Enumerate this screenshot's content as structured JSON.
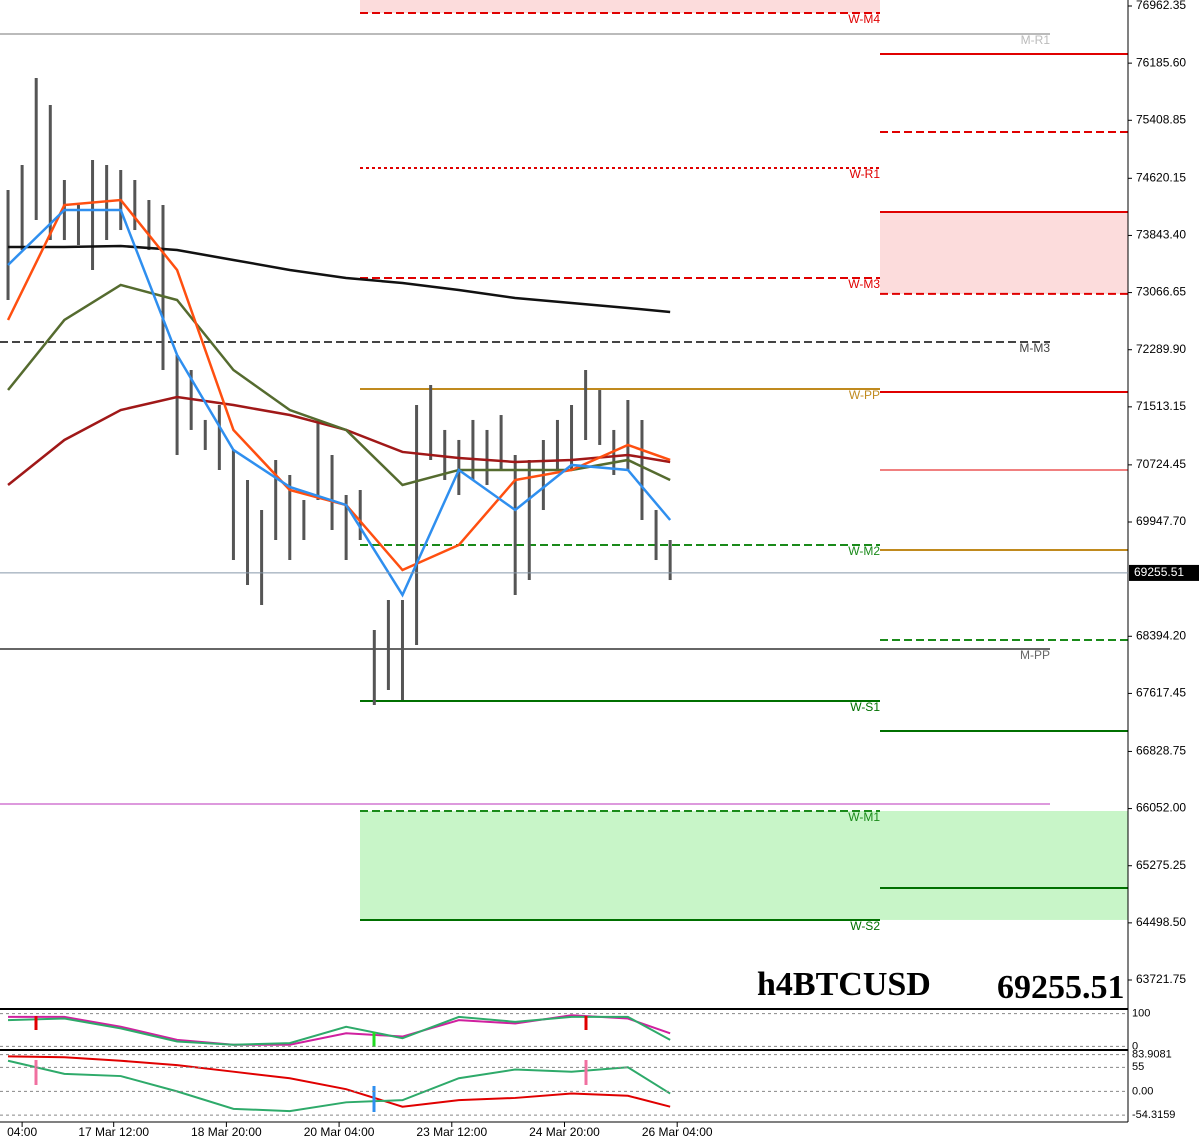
{
  "chart_data": {
    "type": "ohlc",
    "symbol": "h4BTCUSD",
    "last_price": 69255.51,
    "xlim": [
      -0.57,
      79.5
    ],
    "ylim": [
      63341,
      77044
    ],
    "yticks": [
      76962.35,
      {
        "value": 76185.6,
        "label": "76185.60"
      },
      75408.85,
      74620.15,
      {
        "value": 73843.4,
        "label": "73843.40"
      },
      73066.65,
      {
        "value": 72289.9,
        "label": "72289.90"
      },
      71513.15,
      70724.45,
      {
        "value": 69947.7,
        "label": "69947.70"
      },
      {
        "value": 68394.2,
        "label": "68394.20"
      },
      67617.45,
      66828.75,
      {
        "value": 66052,
        "label": "66052.00"
      },
      65275.25,
      {
        "value": 64498.5,
        "label": "64498.50"
      },
      63721.75
    ],
    "xticks": [
      {
        "value": 1,
        "label": "04:00"
      },
      {
        "value": 7.5,
        "label": "17 Mar 12:00"
      },
      {
        "value": 15.5,
        "label": "18 Mar 20:00"
      },
      {
        "value": 23.5,
        "label": "20 Mar 04:00"
      },
      {
        "value": 31.5,
        "label": "23 Mar 12:00"
      },
      {
        "value": 39.5,
        "label": "24 Mar 20:00"
      },
      {
        "value": 47.5,
        "label": "26 Mar 04:00"
      }
    ],
    "bar_color": "#555555",
    "bars": {
      "high": [
        74461,
        74801,
        75984,
        75617,
        74597,
        74257,
        74869,
        74801,
        74733,
        74597,
        74325,
        74257,
        72218,
        72014,
        71335,
        71538,
        70927,
        70519,
        70111,
        70791,
        70587,
        70247,
        71335,
        70859,
        70315,
        70383,
        68480,
        68888,
        68888,
        71538,
        71810,
        71199,
        71063,
        71335,
        71199,
        71402,
        70859,
        70791,
        71063,
        71335,
        71538,
        72014,
        71742,
        71199,
        71606,
        71335,
        70111,
        69703
      ],
      "low": [
        72966,
        73645,
        74053,
        73781,
        73781,
        73713,
        73374,
        73781,
        73917,
        73917,
        73645,
        72014,
        70859,
        71199,
        70927,
        70655,
        69431,
        69092,
        68820,
        69703,
        69431,
        69703,
        70247,
        69839,
        69431,
        69703,
        67460,
        67664,
        67528,
        68276,
        70791,
        70519,
        70315,
        70519,
        70451,
        70655,
        68956,
        69159,
        70111,
        70655,
        70655,
        71063,
        70995,
        70587,
        70655,
        69975,
        69431,
        69159
      ]
    },
    "line_x": [
      0,
      4,
      8,
      12,
      16,
      20,
      24,
      28,
      32,
      36,
      40,
      44,
      47
    ],
    "series": [
      {
        "color": "#111111",
        "values": [
          73686,
          73686,
          73700,
          73645,
          73510,
          73374,
          73265,
          73197,
          73102,
          72993,
          72925,
          72857,
          72803
        ]
      },
      {
        "color": "#a01818",
        "values": [
          70451,
          71063,
          71470,
          71647,
          71538,
          71402,
          71199,
          70900,
          70818,
          70764,
          70791,
          70859,
          70764
        ]
      },
      {
        "color": "#556b2f",
        "values": [
          71742,
          72694,
          73170,
          72966,
          72014,
          71470,
          71199,
          70451,
          70655,
          70655,
          70655,
          70791,
          70519
        ]
      },
      {
        "color": "#ff4f10",
        "values": [
          72694,
          74257,
          74325,
          73374,
          71199,
          70383,
          70179,
          69295,
          69635,
          70519,
          70655,
          70995,
          70791
        ]
      },
      {
        "color": "#2f8fef",
        "values": [
          73442,
          74189,
          74189,
          72218,
          70927,
          70424,
          70179,
          68956,
          70655,
          70111,
          70723,
          70655,
          69975
        ]
      }
    ],
    "monthly_levels": [
      {
        "label": "M-R1",
        "value": 76582,
        "color": "#bbbbbb",
        "style": "solid"
      },
      {
        "label": "M-M3",
        "value": 72395,
        "color": "#444444",
        "style": "dashed"
      },
      {
        "label": "M-PP",
        "value": 68222,
        "color": "#666666",
        "style": "solid"
      },
      {
        "label": null,
        "value": 66114,
        "color": "#dd99dd",
        "style": "solid"
      }
    ],
    "weekly_levels": [
      {
        "label": "W-M4",
        "value": 76867,
        "color": "#e00000",
        "style": "dashed"
      },
      {
        "label": "W-R1",
        "value": 74760,
        "color": "#e00000",
        "style": "dotted"
      },
      {
        "label": "W-M3",
        "value": 73265,
        "color": "#e00000",
        "style": "dashed"
      },
      {
        "label": "W-PP",
        "value": 71756,
        "color": "#c08a1e",
        "style": "solid"
      },
      {
        "label": "W-M2",
        "value": 69635,
        "color": "#1a8a1a",
        "style": "dashed"
      },
      {
        "label": "W-S1",
        "value": 67515,
        "color": "#007000",
        "style": "solid"
      },
      {
        "label": "W-M1",
        "value": 66019,
        "color": "#1a8a1a",
        "style": "dashed"
      },
      {
        "label": "W-S2",
        "value": 64538,
        "color": "#007000",
        "style": "solid"
      }
    ],
    "next_week_levels": [
      {
        "value": 76310,
        "color": "#e00000",
        "style": "solid"
      },
      {
        "value": 75250,
        "color": "#e00000",
        "style": "dashed"
      },
      {
        "value": 74162,
        "color": "#e00000",
        "style": "solid"
      },
      {
        "value": 73049,
        "color": "#e00000",
        "style": "dashed"
      },
      {
        "value": 71715,
        "color": "#e00000",
        "style": "solid"
      },
      {
        "value": 70655,
        "color": "#e00000",
        "style": "thin"
      },
      {
        "value": 69568,
        "color": "#c08a1e",
        "style": "solid"
      },
      {
        "value": 68344,
        "color": "#1a8a1a",
        "style": "dashed"
      },
      {
        "value": 67107,
        "color": "#007000",
        "style": "solid"
      },
      {
        "value": 64973,
        "color": "#007000",
        "style": "solid"
      }
    ],
    "oscillators": [
      {
        "ylim": [
          -5,
          105
        ],
        "yticks": [
          100,
          0
        ],
        "series": [
          {
            "color": "#d0209f",
            "values": [
              90,
              90,
              60,
              20,
              5,
              5,
              40,
              30,
              80,
              70,
              95,
              85,
              40
            ]
          },
          {
            "color": "#2eaa6a",
            "values": [
              80,
              85,
              55,
              15,
              5,
              10,
              60,
              25,
              90,
              75,
              90,
              90,
              20
            ]
          }
        ]
      },
      {
        "ylim": [
          -70,
          90
        ],
        "yticks": [
          83.9081,
          55,
          {
            "value": 0,
            "label": "0.00"
          },
          -54.3159
        ],
        "series": [
          {
            "color": "#e00000",
            "values": [
              80,
              78,
              70,
              60,
              45,
              30,
              5,
              -35,
              -20,
              -15,
              -5,
              -10,
              -35
            ]
          },
          {
            "color": "#2eaa6a",
            "values": [
              70,
              40,
              35,
              0,
              -40,
              -45,
              -25,
              -20,
              30,
              50,
              45,
              55,
              -5
            ]
          }
        ]
      }
    ]
  }
}
